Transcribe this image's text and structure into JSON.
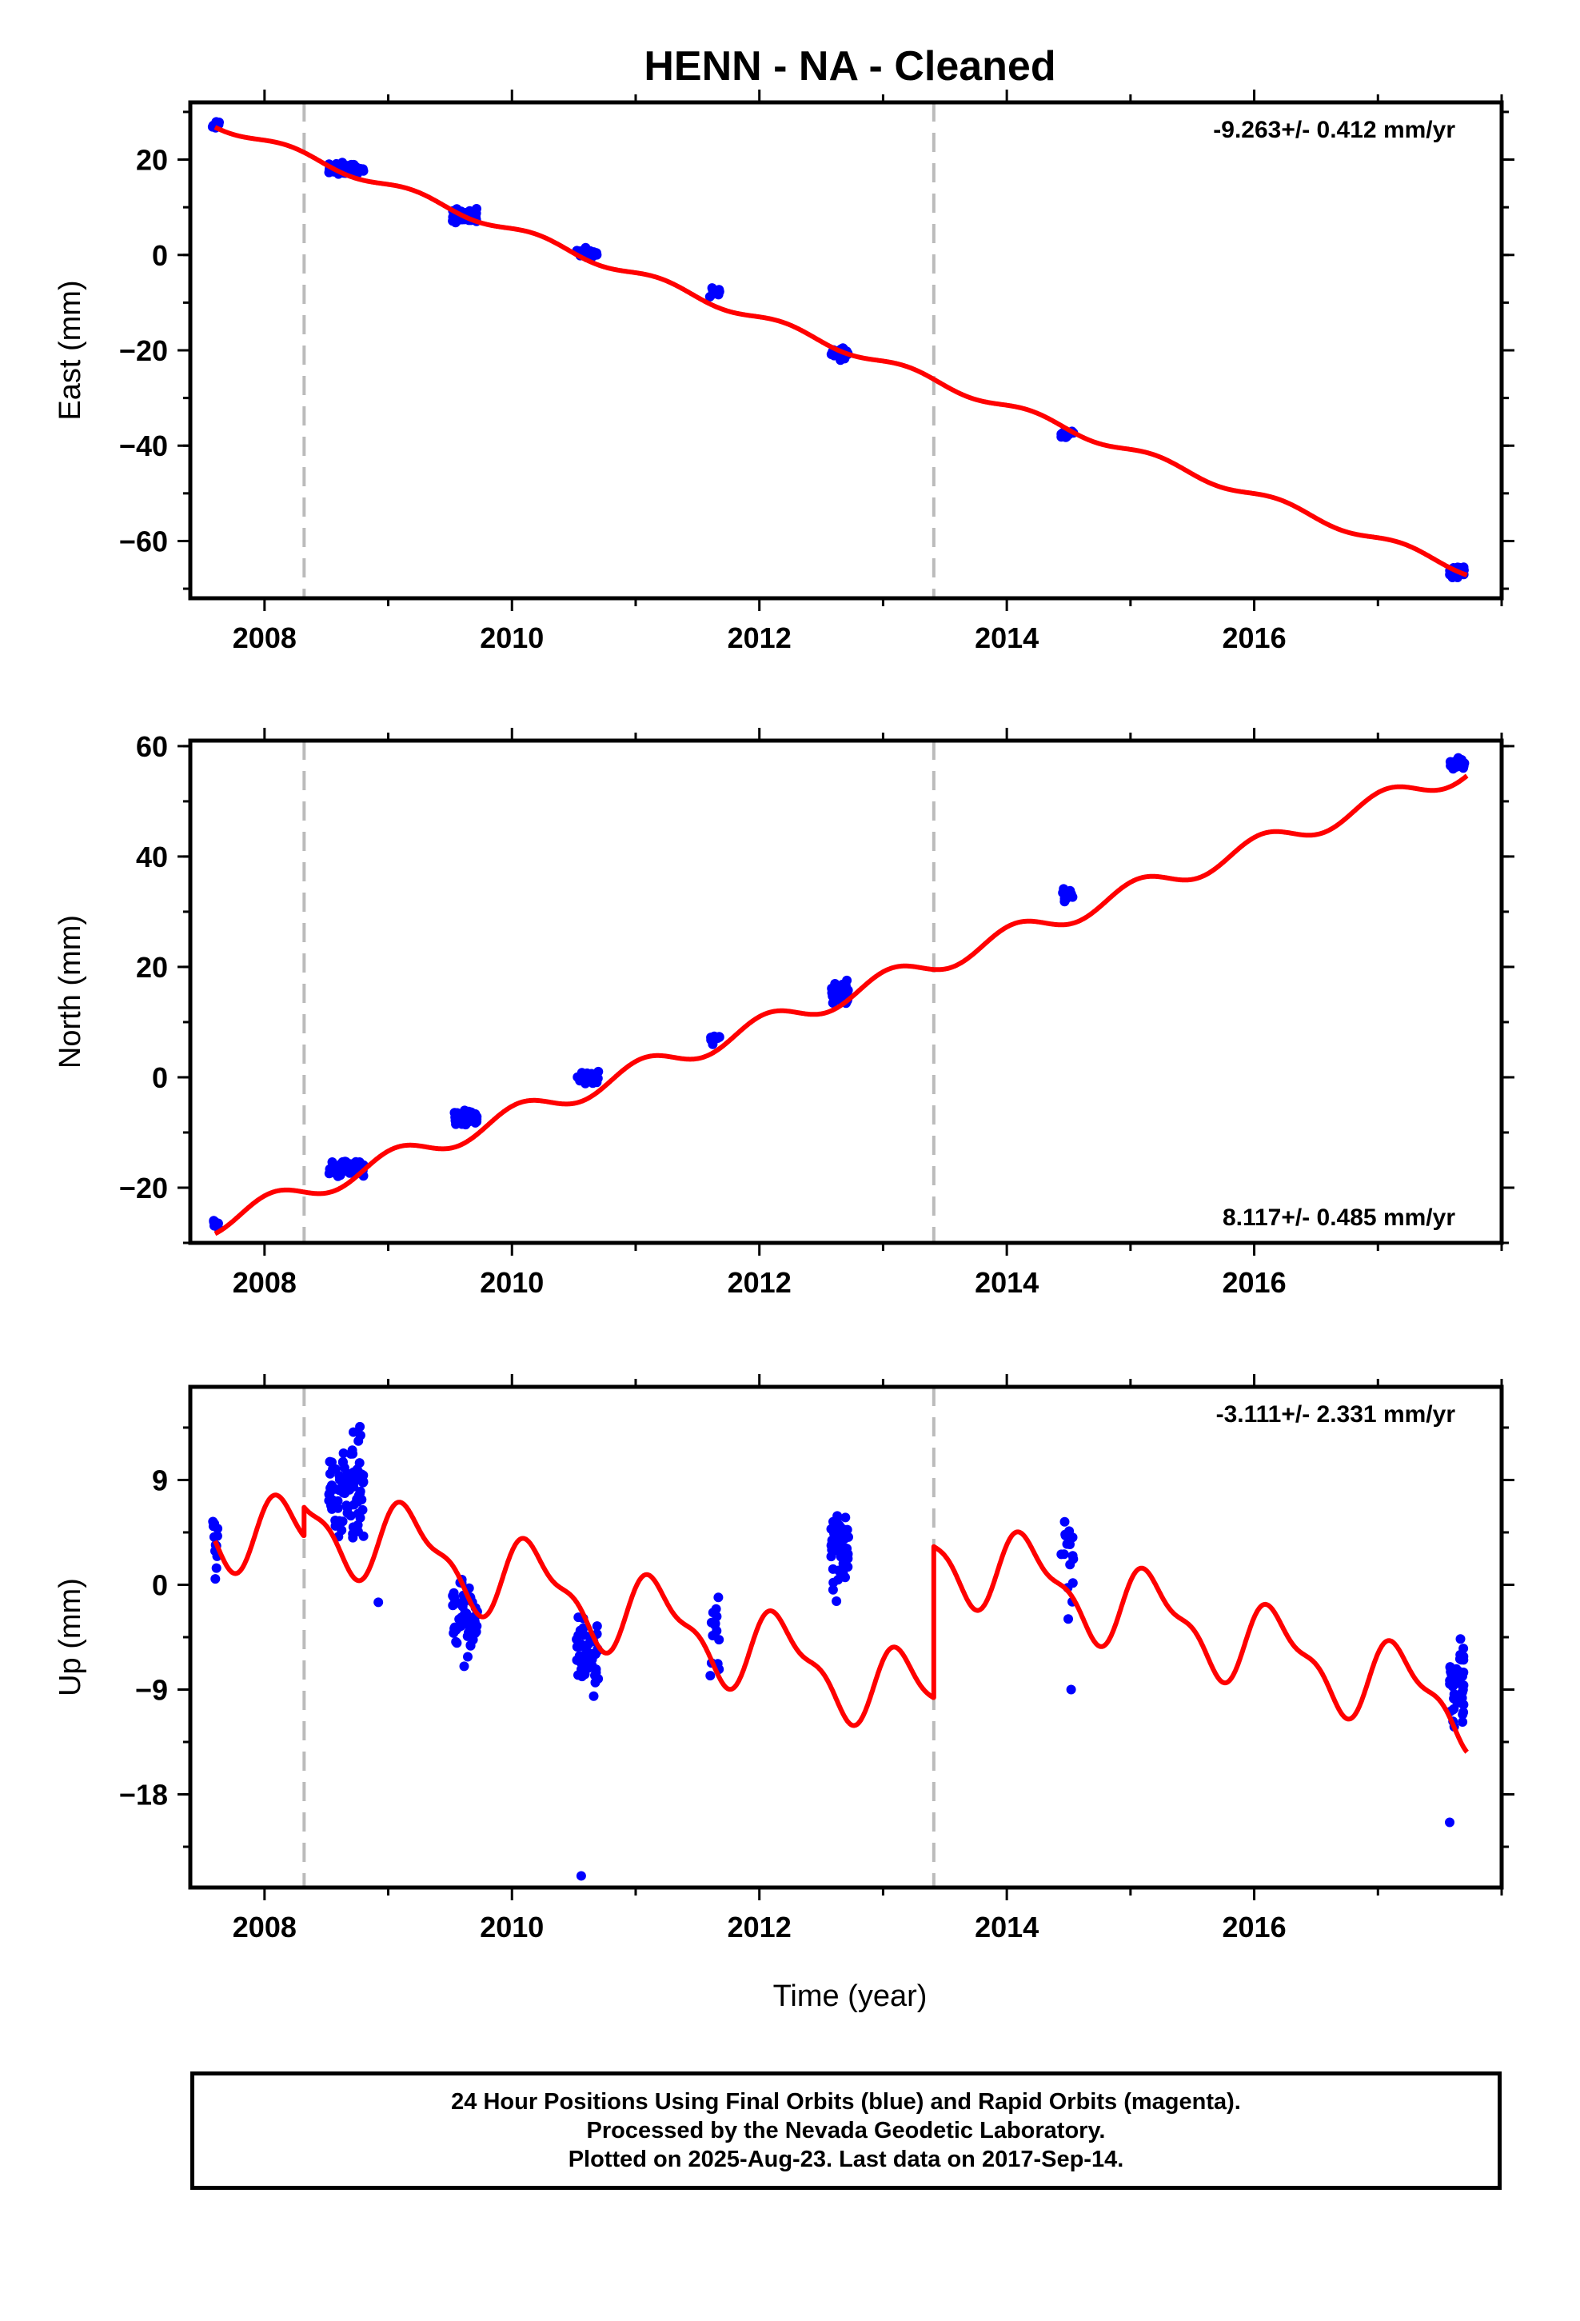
{
  "title": "HENN  - NA - Cleaned",
  "xlabel": "Time (year)",
  "caption": {
    "line1": "24 Hour Positions Using Final Orbits (blue) and Rapid Orbits (magenta).",
    "line2": "Processed by the Nevada Geodetic Laboratory.",
    "line3": "Plotted on 2025-Aug-23. Last data on 2017-Sep-14."
  },
  "colors": {
    "data": "#0000ff",
    "model": "#ff0000",
    "step_line": "#bbbbbb",
    "frame": "#000000"
  },
  "chart_data": [
    {
      "type": "scatter",
      "component": "east",
      "ylabel": "East (mm)",
      "rate_label": "-9.263+/- 0.412 mm/yr",
      "rate_position": "top-right",
      "xlim": [
        2007.4,
        2018.0
      ],
      "ylim": [
        -72,
        32
      ],
      "xticks": [
        2008,
        2010,
        2012,
        2014,
        2016
      ],
      "yticks": [
        20,
        0,
        -20,
        -40,
        -60
      ],
      "ytick_labels": [
        "20",
        "0",
        "−20",
        "−40",
        "−60"
      ],
      "step_epochs": [
        2008.32,
        2013.41
      ],
      "model": {
        "offset": 27.5,
        "rate": -9.263,
        "t0": 2007.6,
        "annual_amp": 0.9,
        "annual_phase": 0.3,
        "steps": []
      },
      "clusters": [
        {
          "t0": 2007.58,
          "t1": 2007.64,
          "n": 10,
          "mean": 27.3,
          "spread": 1.4
        },
        {
          "t0": 2008.52,
          "t1": 2008.8,
          "n": 70,
          "mean": 18.0,
          "spread": 1.4
        },
        {
          "t0": 2009.52,
          "t1": 2009.72,
          "n": 45,
          "mean": 8.2,
          "spread": 1.6
        },
        {
          "t0": 2010.52,
          "t1": 2010.7,
          "n": 25,
          "mean": 0.3,
          "spread": 1.3
        },
        {
          "t0": 2011.6,
          "t1": 2011.68,
          "n": 12,
          "mean": -7.8,
          "spread": 1.3
        },
        {
          "t0": 2012.58,
          "t1": 2012.72,
          "n": 45,
          "mean": -20.5,
          "spread": 1.2
        },
        {
          "t0": 2014.44,
          "t1": 2014.54,
          "n": 14,
          "mean": -37.5,
          "spread": 0.9
        },
        {
          "t0": 2017.58,
          "t1": 2017.7,
          "n": 45,
          "mean": -66.5,
          "spread": 1.5
        }
      ]
    },
    {
      "type": "scatter",
      "component": "north",
      "ylabel": "North (mm)",
      "rate_label": "8.117+/- 0.485 mm/yr",
      "rate_position": "bottom-right",
      "xlim": [
        2007.4,
        2018.0
      ],
      "ylim": [
        -30,
        61
      ],
      "xticks": [
        2008,
        2010,
        2012,
        2014,
        2016
      ],
      "yticks": [
        60,
        40,
        20,
        0,
        -20
      ],
      "ytick_labels": [
        "60",
        "40",
        "20",
        "0",
        "−20"
      ],
      "step_epochs": [
        2008.32,
        2013.41
      ],
      "model": {
        "offset": -26.5,
        "rate": 8.117,
        "t0": 2007.6,
        "annual_amp": 1.9,
        "annual_phase": 1.2,
        "steps": []
      },
      "clusters": [
        {
          "t0": 2007.58,
          "t1": 2007.64,
          "n": 10,
          "mean": -26.5,
          "spread": 1.0
        },
        {
          "t0": 2008.52,
          "t1": 2008.8,
          "n": 70,
          "mean": -16.5,
          "spread": 1.8
        },
        {
          "t0": 2009.52,
          "t1": 2009.72,
          "n": 45,
          "mean": -7.5,
          "spread": 1.5
        },
        {
          "t0": 2010.52,
          "t1": 2010.7,
          "n": 30,
          "mean": 0.0,
          "spread": 1.3
        },
        {
          "t0": 2011.6,
          "t1": 2011.68,
          "n": 12,
          "mean": 6.8,
          "spread": 1.0
        },
        {
          "t0": 2012.58,
          "t1": 2012.72,
          "n": 45,
          "mean": 15.5,
          "spread": 2.2
        },
        {
          "t0": 2014.44,
          "t1": 2014.54,
          "n": 14,
          "mean": 33.0,
          "spread": 1.4
        },
        {
          "t0": 2017.58,
          "t1": 2017.7,
          "n": 45,
          "mean": 56.8,
          "spread": 1.1
        }
      ]
    },
    {
      "type": "scatter",
      "component": "up",
      "ylabel": "Up (mm)",
      "rate_label": "-3.111+/- 2.331 mm/yr",
      "rate_position": "top-right",
      "xlim": [
        2007.4,
        2018.0
      ],
      "ylim": [
        -26,
        17
      ],
      "xticks": [
        2008,
        2010,
        2012,
        2014,
        2016
      ],
      "yticks": [
        9,
        0,
        -9,
        -18
      ],
      "ytick_labels": [
        "9",
        "0",
        "−9",
        "−18"
      ],
      "step_epochs": [
        2008.32,
        2013.41
      ],
      "model": {
        "offset": 5.5,
        "rate": -3.111,
        "t0": 2007.6,
        "annual_amp": 3.2,
        "annual_phase": 0.4,
        "semiannual_amp": 1.3,
        "semiannual_phase": 1.0,
        "steps": [
          {
            "t": 2008.32,
            "dy": 2.5
          },
          {
            "t": 2013.41,
            "dy": 13.0
          }
        ]
      },
      "clusters": [
        {
          "t0": 2007.58,
          "t1": 2007.64,
          "n": 12,
          "mean": 4.0,
          "spread": 3.2
        },
        {
          "t0": 2008.52,
          "t1": 2008.8,
          "n": 90,
          "mean": 8.5,
          "spread": 4.5
        },
        {
          "t0": 2009.52,
          "t1": 2009.72,
          "n": 55,
          "mean": -3.0,
          "spread": 4.0
        },
        {
          "t0": 2010.52,
          "t1": 2010.7,
          "n": 55,
          "mean": -6.0,
          "spread": 4.0
        },
        {
          "t0": 2011.6,
          "t1": 2011.68,
          "n": 14,
          "mean": -4.0,
          "spread": 4.0
        },
        {
          "t0": 2012.58,
          "t1": 2012.72,
          "n": 55,
          "mean": 3.5,
          "spread": 4.5
        },
        {
          "t0": 2014.44,
          "t1": 2014.54,
          "n": 16,
          "mean": 1.5,
          "spread": 5.0
        },
        {
          "t0": 2017.58,
          "t1": 2017.7,
          "n": 50,
          "mean": -8.5,
          "spread": 4.0
        }
      ],
      "outliers": [
        {
          "x": 2010.56,
          "y": -25.0
        },
        {
          "x": 2017.58,
          "y": -20.4
        },
        {
          "x": 2008.92,
          "y": -1.5
        },
        {
          "x": 2014.52,
          "y": -9.0
        }
      ]
    }
  ]
}
